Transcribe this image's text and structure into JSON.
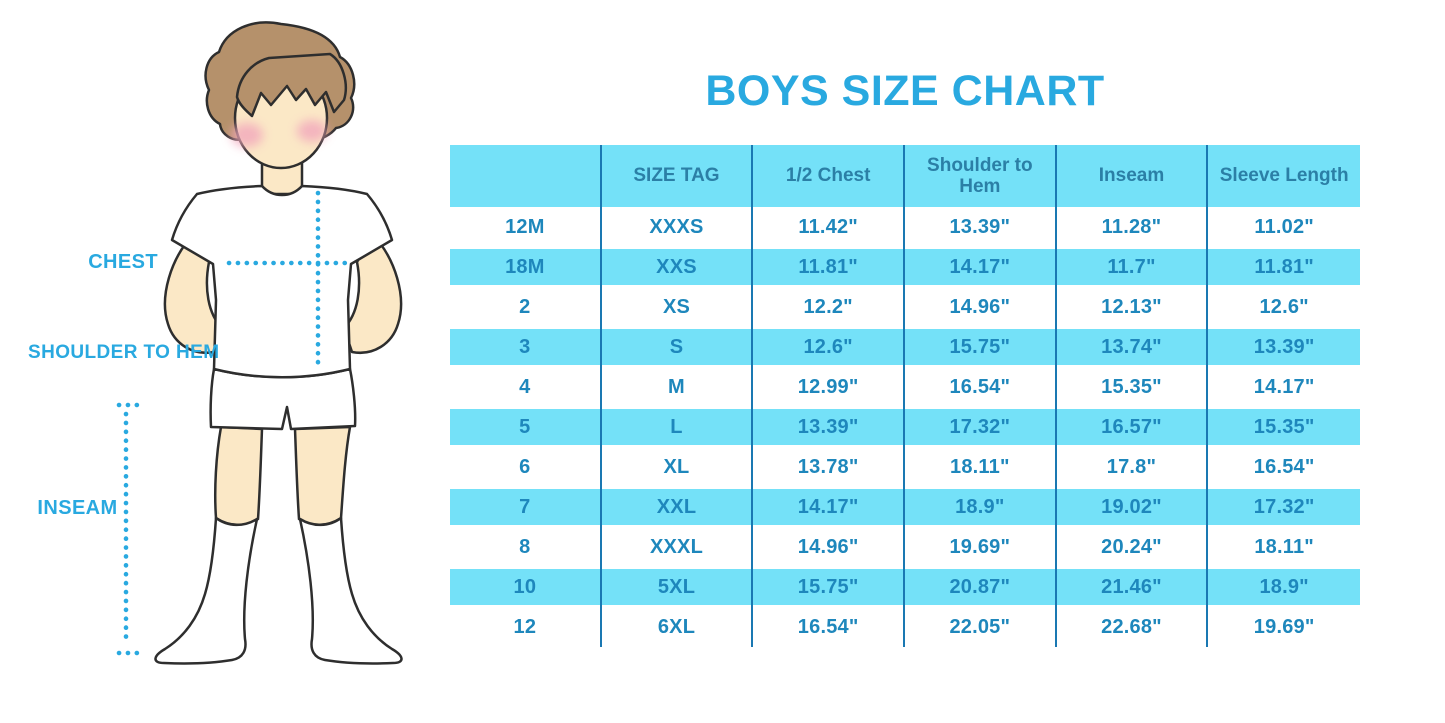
{
  "page": {
    "title": "BOYS SIZE CHART"
  },
  "figure": {
    "description": "outline illustration of a boy in white t-shirt, shorts and knee socks with measurement guide lines",
    "labels": {
      "chest": "CHEST",
      "shoulder_to_hem": "SHOULDER TO HEM",
      "inseam": "INSEAM"
    }
  },
  "colors": {
    "accent_blue": "#29A9E0",
    "table_stripe": "#74E1F8",
    "table_divider": "#1A78B2",
    "header_text": "#2B7FA6",
    "cell_text": "#1E87BC",
    "skin": "#FBE8C6",
    "hair": "#B5916B",
    "blush": "#F2A7BC",
    "outline": "#2E2E2E"
  },
  "chart_data": {
    "type": "table",
    "title": "BOYS SIZE CHART",
    "units": "inches",
    "columns": [
      "",
      "SIZE TAG",
      "1/2 Chest",
      "Shoulder to Hem",
      "Inseam",
      "Sleeve Length"
    ],
    "rows": [
      [
        "12M",
        "XXXS",
        "11.42\"",
        "13.39\"",
        "11.28\"",
        "11.02\""
      ],
      [
        "18M",
        "XXS",
        "11.81\"",
        "14.17\"",
        "11.7\"",
        "11.81\""
      ],
      [
        "2",
        "XS",
        "12.2\"",
        "14.96\"",
        "12.13\"",
        "12.6\""
      ],
      [
        "3",
        "S",
        "12.6\"",
        "15.75\"",
        "13.74\"",
        "13.39\""
      ],
      [
        "4",
        "M",
        "12.99\"",
        "16.54\"",
        "15.35\"",
        "14.17\""
      ],
      [
        "5",
        "L",
        "13.39\"",
        "17.32\"",
        "16.57\"",
        "15.35\""
      ],
      [
        "6",
        "XL",
        "13.78\"",
        "18.11\"",
        "17.8\"",
        "16.54\""
      ],
      [
        "7",
        "XXL",
        "14.17\"",
        "18.9\"",
        "19.02\"",
        "17.32\""
      ],
      [
        "8",
        "XXXL",
        "14.96\"",
        "19.69\"",
        "20.24\"",
        "18.11\""
      ],
      [
        "10",
        "5XL",
        "15.75\"",
        "20.87\"",
        "21.46\"",
        "18.9\""
      ],
      [
        "12",
        "6XL",
        "16.54\"",
        "22.05\"",
        "22.68\"",
        "19.69\""
      ]
    ],
    "striped_row_indices": [
      1,
      3,
      5,
      7,
      9
    ],
    "legend_position": "none",
    "grid": "vertical-dividers-only"
  }
}
